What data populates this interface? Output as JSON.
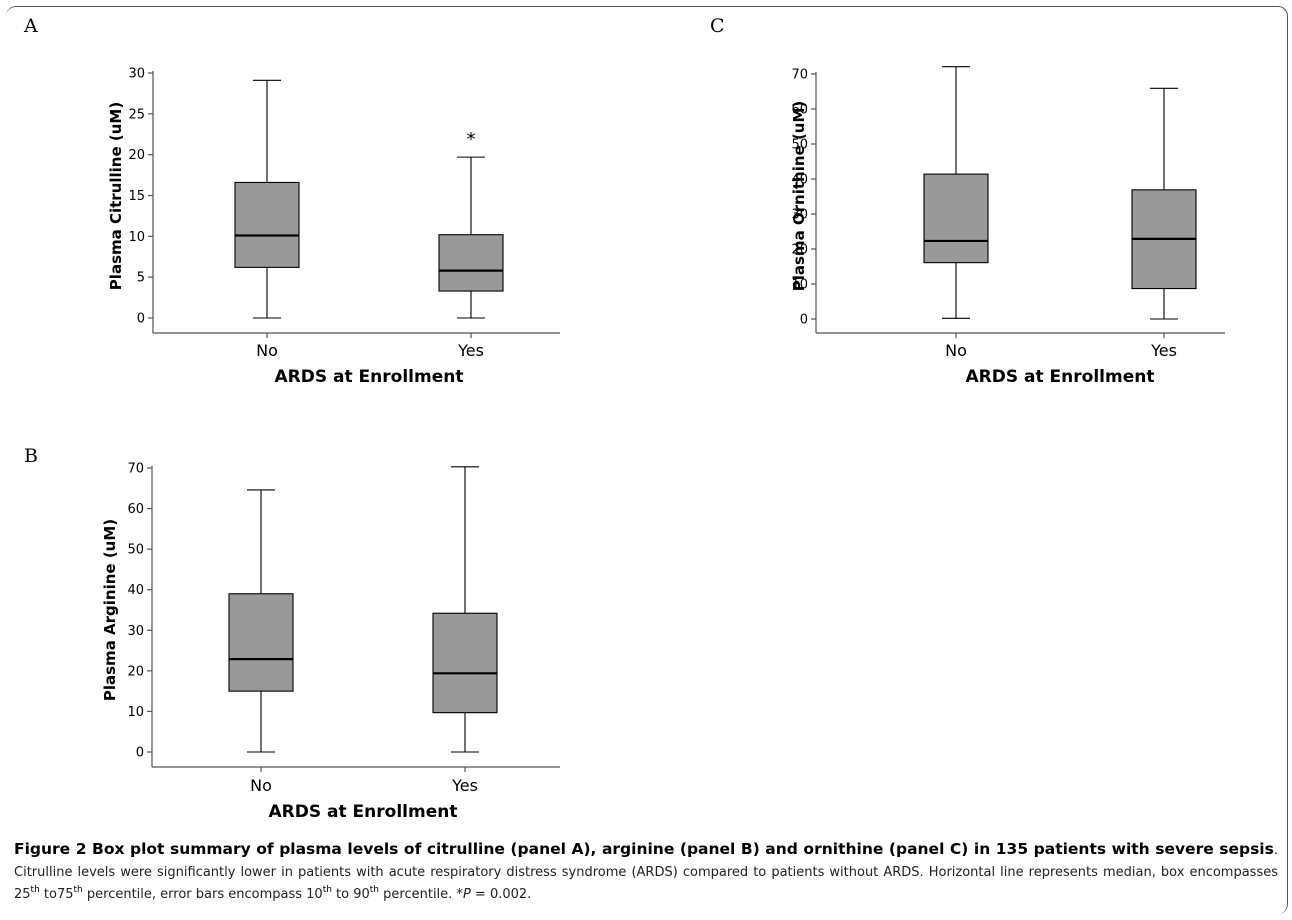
{
  "figure": {
    "caption_title": "Figure 2 Box plot summary of plasma levels of citrulline (panel A), arginine (panel B) and ornithine (panel C) in 135 patients with severe sepsis",
    "caption_body_1": ". Citrulline levels were significantly lower in patients with acute respiratory distress syndrome (ARDS) compared to patients without ARDS. Horizontal line represents median, box encompasses 25",
    "sup_th1": "th",
    "caption_body_2": " to75",
    "sup_th2": "th",
    "caption_body_3": " percentile, error bars encompass 10",
    "sup_th3": "th",
    "caption_body_4": " to 90",
    "sup_th4": "th",
    "caption_body_5": " percentile. *",
    "caption_p_italic": "P",
    "caption_body_6": " = 0.002."
  },
  "colors": {
    "box_fill": "#999999",
    "stroke": "#000000",
    "axis": "#555555"
  },
  "chart_data": [
    {
      "panel": "A",
      "type": "box",
      "xlabel": "ARDS at Enrollment",
      "ylabel": "Plasma Citrulline (uM)",
      "ylim": [
        0,
        30
      ],
      "yticks": [
        0,
        5,
        10,
        15,
        20,
        25,
        30
      ],
      "categories": [
        "No",
        "Yes"
      ],
      "boxes": [
        {
          "category": "No",
          "whisker_low": 0,
          "q1": 6.2,
          "median": 10.1,
          "q3": 16.6,
          "whisker_high": 29.1
        },
        {
          "category": "Yes",
          "whisker_low": 0,
          "q1": 3.3,
          "median": 5.8,
          "q3": 10.2,
          "whisker_high": 19.7,
          "annotation": "*"
        }
      ]
    },
    {
      "panel": "B",
      "type": "box",
      "xlabel": "ARDS at Enrollment",
      "ylabel": "Plasma Arginine (uM)",
      "ylim": [
        0,
        70
      ],
      "yticks": [
        0,
        10,
        20,
        30,
        40,
        50,
        60,
        70
      ],
      "categories": [
        "No",
        "Yes"
      ],
      "boxes": [
        {
          "category": "No",
          "whisker_low": 0,
          "q1": 15.0,
          "median": 22.9,
          "q3": 39.0,
          "whisker_high": 64.6
        },
        {
          "category": "Yes",
          "whisker_low": 0,
          "q1": 9.7,
          "median": 19.4,
          "q3": 34.2,
          "whisker_high": 70.3
        }
      ]
    },
    {
      "panel": "C",
      "type": "box",
      "xlabel": "ARDS at Enrollment",
      "ylabel": "Plasma Ornithine (uM)",
      "ylim": [
        0,
        70
      ],
      "yticks": [
        0,
        10,
        20,
        30,
        40,
        50,
        60,
        70
      ],
      "categories": [
        "No",
        "Yes"
      ],
      "boxes": [
        {
          "category": "No",
          "whisker_low": 0.2,
          "q1": 16.1,
          "median": 22.3,
          "q3": 41.4,
          "whisker_high": 72.1
        },
        {
          "category": "Yes",
          "whisker_low": 0,
          "q1": 8.7,
          "median": 22.9,
          "q3": 36.9,
          "whisker_high": 65.9
        }
      ]
    }
  ]
}
